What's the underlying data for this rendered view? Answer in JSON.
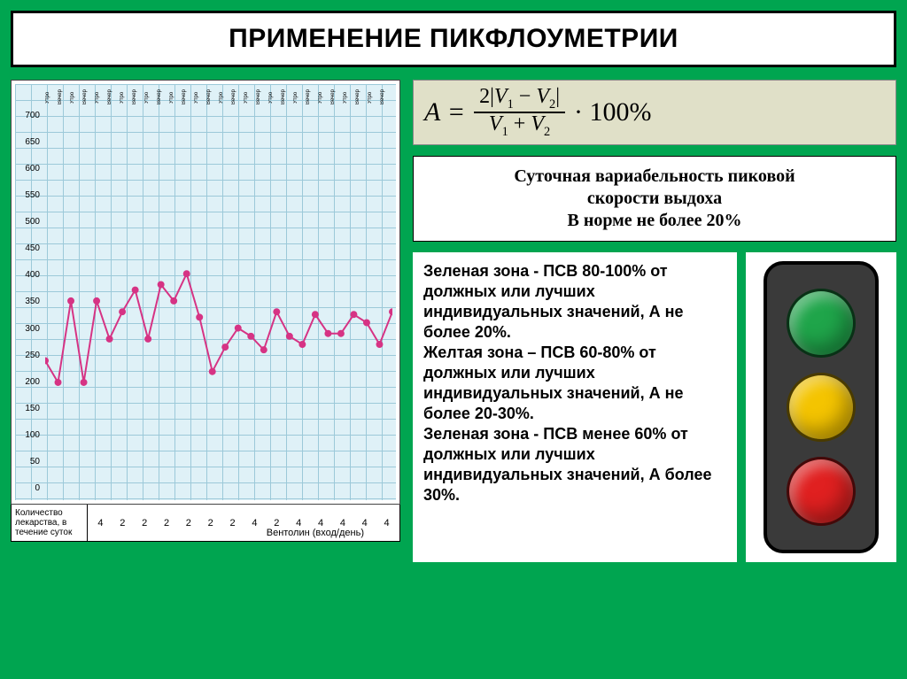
{
  "title": "ПРИМЕНЕНИЕ ПИКФЛОУМЕТРИИ",
  "chart": {
    "type": "line",
    "background_color": "#dff1f7",
    "grid_color": "#9cc9d9",
    "line_color": "#d63384",
    "marker_color": "#d63384",
    "marker_size": 4,
    "line_width": 2,
    "ylim": [
      0,
      700
    ],
    "ytick_step": 50,
    "yticks": [
      "700",
      "650",
      "600",
      "550",
      "500",
      "450",
      "400",
      "350",
      "300",
      "250",
      "200",
      "150",
      "100",
      "50",
      "0"
    ],
    "top_labels": [
      "Утро",
      "Вечер",
      "Утро",
      "Вечер",
      "Утро",
      "Вечер",
      "Утро",
      "Вечер",
      "Утро",
      "Вечер",
      "Утро",
      "Вечер",
      "Утро",
      "Вечер",
      "Утро",
      "Вечер",
      "Утро",
      "Вечер",
      "Утро",
      "Вечер",
      "Утро",
      "Вечер",
      "Утро",
      "Вечер",
      "Утро",
      "Вечер",
      "Утро",
      "Вечер"
    ],
    "values": [
      240,
      200,
      350,
      200,
      350,
      280,
      330,
      370,
      280,
      380,
      350,
      400,
      320,
      220,
      265,
      300,
      285,
      260,
      330,
      285,
      270,
      325,
      290,
      290,
      325,
      310,
      270,
      330
    ],
    "day_headers": [
      "Ср.",
      "",
      "",
      "Æ",
      "ар.",
      "",
      "",
      "Ср.",
      "",
      "",
      "Æ",
      "ар."
    ]
  },
  "bottom_table": {
    "label": "Количество лекарства, в течение суток",
    "cells": [
      "4",
      "2",
      "2",
      "2",
      "2",
      "2",
      "2",
      "4",
      "2",
      "4",
      "4",
      "4",
      "4",
      "4"
    ],
    "caption": "Вентолин (вход/день)"
  },
  "formula": {
    "lhs": "A =",
    "num": "2|V₁ − V₂|",
    "den": "V₁ + V₂",
    "tail": "· 100%"
  },
  "variability": {
    "line1": "Суточная вариабельность пиковой",
    "line2": "скорости выдоха",
    "line3": "В норме не более 20%"
  },
  "zones": {
    "text": "Зеленая зона - ПСВ 80-100% от должных или лучших индивидуальных значений, А не более 20%.\nЖелтая зона – ПСВ 60-80% от должных или лучших индивидуальных значений, А не более 20-30%.\nЗеленая зона - ПСВ менее 60% от должных или лучших индивидуальных значений, А более 30%."
  },
  "traffic_light": {
    "body_color": "#3a3a3a",
    "lights": [
      {
        "name": "green-light",
        "color": "#1fa54a"
      },
      {
        "name": "yellow-light",
        "color": "#f4c400"
      },
      {
        "name": "red-light",
        "color": "#e02020"
      }
    ]
  }
}
